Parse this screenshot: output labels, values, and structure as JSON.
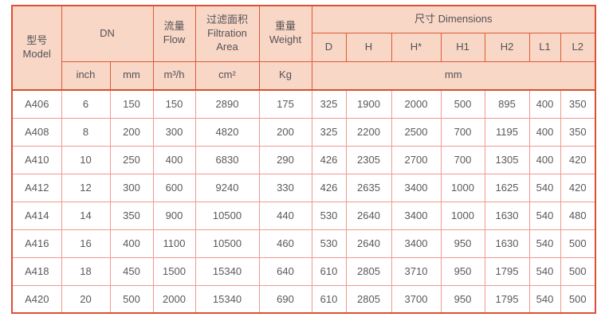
{
  "colors": {
    "header_bg": "#f8d7c7",
    "header_border": "#e15a38",
    "body_border": "#f09a8d",
    "outer_border": "#dd5035",
    "text": "#5b585b"
  },
  "table": {
    "header": {
      "model_zh": "型号",
      "model_en": "Model",
      "dn": "DN",
      "flow_zh": "流量",
      "flow_en": "Flow",
      "filtration_zh": "过滤面积",
      "filtration_en1": "Filtration",
      "filtration_en2": "Area",
      "weight_zh": "重量",
      "weight_en": "Weight",
      "dimensions": "尺寸 Dimensions",
      "dim_cols": [
        "D",
        "H",
        "H*",
        "H1",
        "H2",
        "L1",
        "L2"
      ],
      "unit_inch": "inch",
      "unit_mm": "mm",
      "unit_flow": "m³/h",
      "unit_area": "cm²",
      "unit_weight": "Kg",
      "unit_dims": "mm"
    },
    "rows": [
      {
        "model": "A406",
        "values": [
          "6",
          "150",
          "150",
          "2890",
          "175",
          "325",
          "1900",
          "2000",
          "500",
          "895",
          "400",
          "350"
        ]
      },
      {
        "model": "A408",
        "values": [
          "8",
          "200",
          "300",
          "4820",
          "200",
          "325",
          "2200",
          "2500",
          "700",
          "1195",
          "400",
          "350"
        ]
      },
      {
        "model": "A410",
        "values": [
          "10",
          "250",
          "400",
          "6830",
          "290",
          "426",
          "2305",
          "2700",
          "700",
          "1305",
          "400",
          "420"
        ]
      },
      {
        "model": "A412",
        "values": [
          "12",
          "300",
          "600",
          "9240",
          "330",
          "426",
          "2635",
          "3400",
          "1000",
          "1625",
          "540",
          "420"
        ]
      },
      {
        "model": "A414",
        "values": [
          "14",
          "350",
          "900",
          "10500",
          "440",
          "530",
          "2640",
          "3400",
          "1000",
          "1630",
          "540",
          "480"
        ]
      },
      {
        "model": "A416",
        "values": [
          "16",
          "400",
          "1100",
          "10500",
          "460",
          "530",
          "2640",
          "3400",
          "950",
          "1630",
          "540",
          "500"
        ]
      },
      {
        "model": "A418",
        "values": [
          "18",
          "450",
          "1500",
          "15340",
          "640",
          "610",
          "2805",
          "3710",
          "950",
          "1795",
          "540",
          "500"
        ]
      },
      {
        "model": "A420",
        "values": [
          "20",
          "500",
          "2000",
          "15340",
          "690",
          "610",
          "2805",
          "3700",
          "950",
          "1795",
          "540",
          "500"
        ]
      }
    ]
  }
}
